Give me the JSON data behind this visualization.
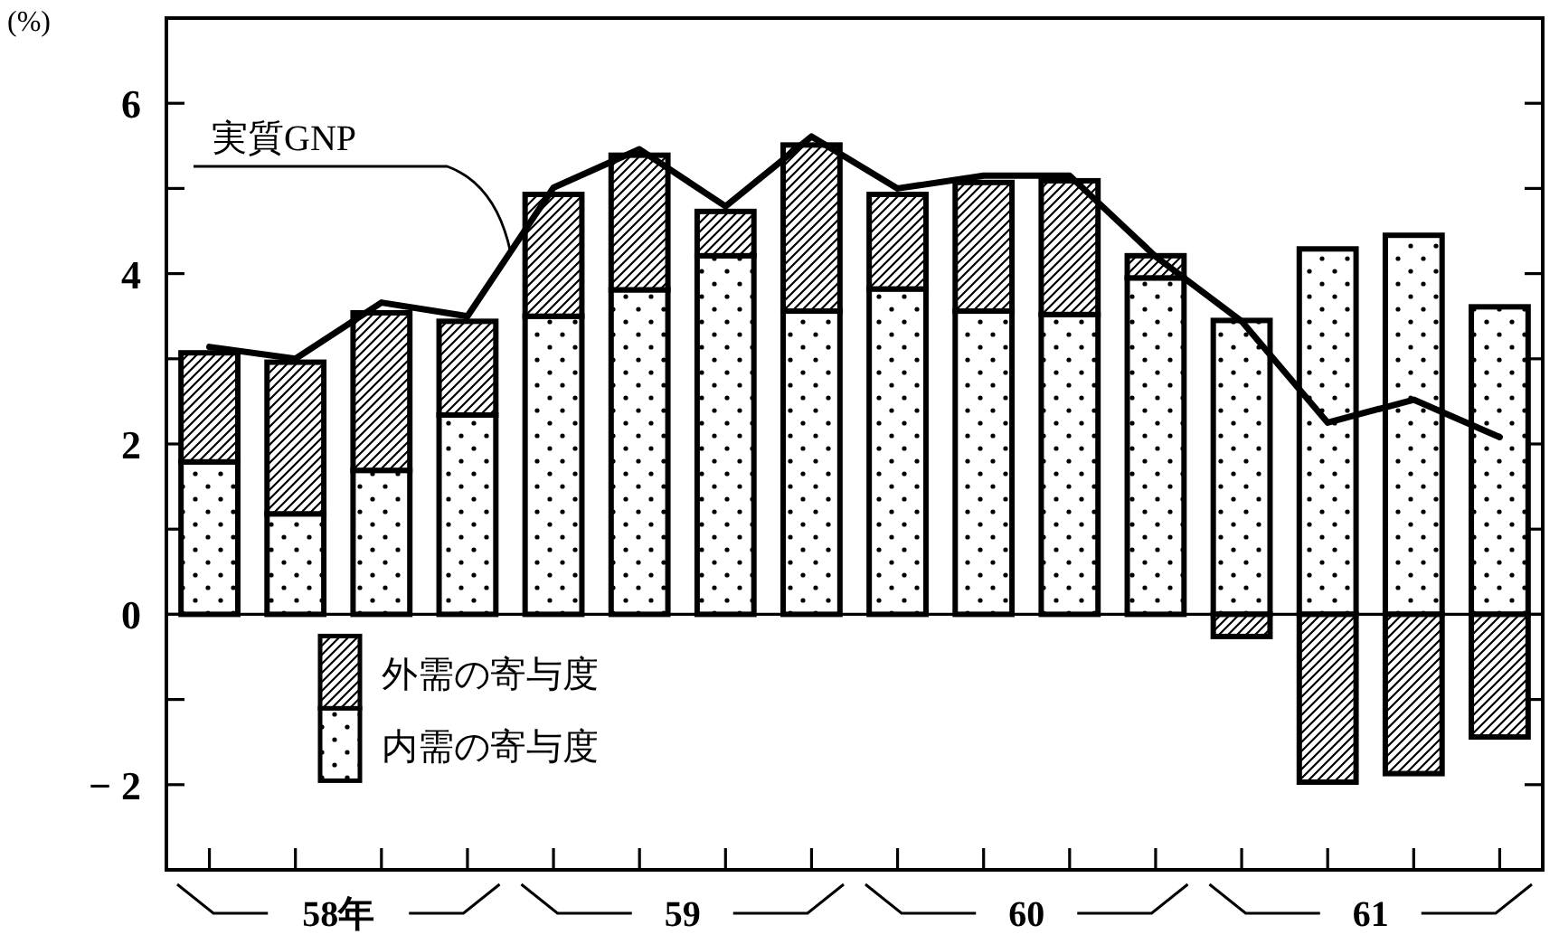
{
  "chart_data": {
    "type": "bar",
    "stacked": true,
    "ylabel": "(%)",
    "categories": [
      null,
      null,
      null,
      null,
      null,
      null,
      null,
      null,
      null,
      null,
      null,
      null,
      null,
      null,
      null,
      null
    ],
    "series": [
      {
        "name": "内需の寄与度",
        "color": "#000000",
        "values": [
          1.79,
          1.18,
          1.69,
          2.34,
          3.5,
          3.81,
          4.21,
          3.56,
          3.82,
          3.56,
          3.52,
          3.95,
          3.45,
          4.29,
          4.45,
          3.61
        ]
      },
      {
        "name": "外需の寄与度",
        "color": "#000000",
        "values": [
          1.28,
          1.78,
          1.85,
          1.1,
          1.43,
          1.58,
          0.52,
          1.95,
          1.11,
          1.51,
          1.57,
          0.26,
          -0.26,
          -1.97,
          -1.87,
          -1.44
        ]
      },
      {
        "name": "実質GNP",
        "type": "line",
        "color": "#000000",
        "values": [
          3.14,
          3.0,
          3.66,
          3.5,
          5.01,
          5.46,
          4.79,
          5.61,
          5.0,
          5.15,
          5.15,
          4.2,
          3.44,
          2.25,
          2.52,
          2.08
        ]
      }
    ],
    "ylim": [
      -3,
      7
    ],
    "yticks": [
      {
        "value": -3,
        "label": null
      },
      {
        "value": -2,
        "label": "− 2"
      },
      {
        "value": -1,
        "label": null
      },
      0,
      {
        "value": 1,
        "label": null
      },
      2,
      {
        "value": 3,
        "label": null
      },
      4,
      {
        "value": 5,
        "label": null
      },
      6
    ],
    "legend": "bottom left",
    "line_style": "solid",
    "annotations": [
      "58年",
      "59",
      "60",
      "61"
    ]
  }
}
